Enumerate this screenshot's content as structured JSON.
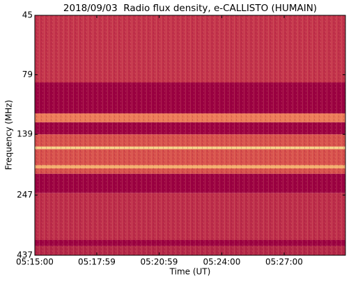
{
  "chart_data": {
    "type": "spectrogram",
    "title": "2018/09/03  Radio flux density, e-CALLISTO (HUMAIN)",
    "x_label": "Time (UT)",
    "y_label": "Frequency (MHz)",
    "xlim": [
      "05:15:00",
      "05:29:57"
    ],
    "xticks": [
      "05:15:00",
      "05:17:59",
      "05:20:59",
      "05:24:00",
      "05:27:00"
    ],
    "ylim": [
      45,
      437
    ],
    "yticks": [
      45,
      79,
      139,
      247,
      437
    ],
    "y_scale": "log",
    "y_inverted": true,
    "bands": [
      {
        "range": [
          45,
          85
        ],
        "color": "#c3334b"
      },
      {
        "range": [
          85,
          114
        ],
        "color": "#9b0041"
      },
      {
        "range": [
          114,
          124
        ],
        "color": "#ec7a58"
      },
      {
        "range": [
          124,
          139
        ],
        "color": "#9b0041"
      },
      {
        "range": [
          139,
          202
        ],
        "color": "#d7504c"
      },
      {
        "range": [
          156,
          160
        ],
        "color": "#f6d58c"
      },
      {
        "range": [
          186,
          192
        ],
        "color": "#f3b070"
      },
      {
        "range": [
          202,
          242
        ],
        "color": "#9b0041"
      },
      {
        "range": [
          242,
          378
        ],
        "color": "#bd2d4a"
      },
      {
        "range": [
          378,
          400
        ],
        "color": "#9b0041"
      },
      {
        "range": [
          400,
          437
        ],
        "color": "#b42647"
      }
    ]
  }
}
